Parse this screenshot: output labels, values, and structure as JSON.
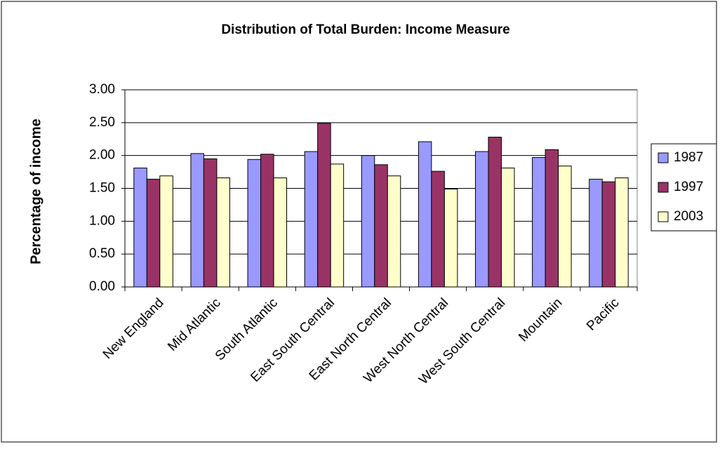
{
  "chart_data": {
    "type": "bar",
    "title": "Distribution of Total Burden: Income Measure",
    "y_label": "Percentage of income",
    "categories": [
      "New England",
      "Mid Atlantic",
      "South Atlantic",
      "East South Central",
      "East North Central",
      "West North Central",
      "West South Central",
      "Mountain",
      "Pacific"
    ],
    "series": [
      {
        "name": "1987",
        "color": "#9999ff",
        "values": [
          1.81,
          2.03,
          1.94,
          2.06,
          2.0,
          2.21,
          2.06,
          1.97,
          1.64
        ]
      },
      {
        "name": "1997",
        "color": "#993366",
        "values": [
          1.64,
          1.95,
          2.02,
          2.49,
          1.86,
          1.76,
          2.28,
          2.09,
          1.6
        ]
      },
      {
        "name": "2003",
        "color": "#ffffcc",
        "values": [
          1.69,
          1.66,
          1.66,
          1.87,
          1.69,
          1.49,
          1.81,
          1.84,
          1.66
        ]
      }
    ],
    "ylim": [
      0,
      3
    ],
    "yticks": [
      {
        "value": 0,
        "label": "0.00"
      },
      {
        "value": 0.5,
        "label": "0.50"
      },
      {
        "value": 1,
        "label": "1.00"
      },
      {
        "value": 1.5,
        "label": "1.50"
      },
      {
        "value": 2,
        "label": "2.00"
      },
      {
        "value": 2.5,
        "label": "2.50"
      },
      {
        "value": 3,
        "label": "3.00"
      }
    ],
    "grid": true,
    "legend": "right"
  }
}
